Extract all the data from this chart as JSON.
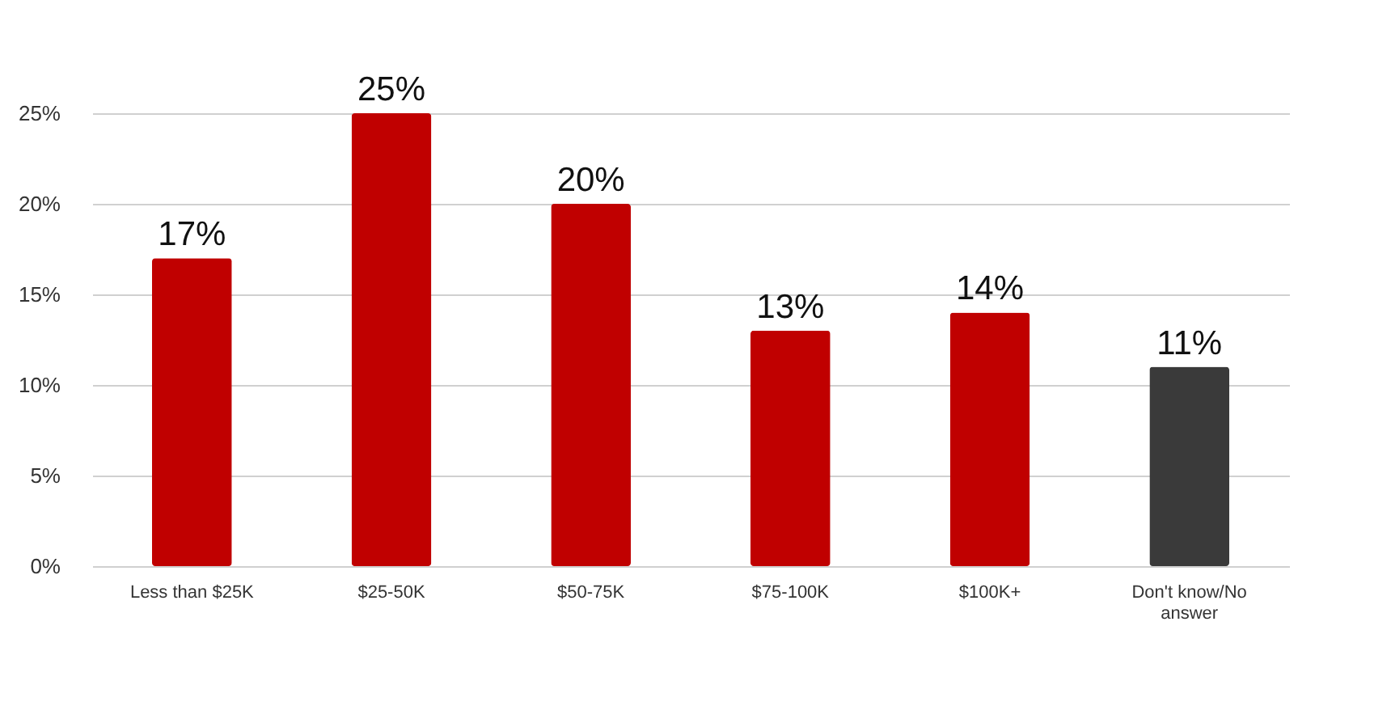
{
  "chart_data": {
    "type": "bar",
    "categories": [
      "Less than $25K",
      "$25-50K",
      "$50-75K",
      "$75-100K",
      "$100K+",
      "Don't know/No answer"
    ],
    "values": [
      17,
      25,
      20,
      13,
      14,
      11
    ],
    "colors": [
      "#c00000",
      "#c00000",
      "#c00000",
      "#c00000",
      "#c00000",
      "#3a3a3a"
    ],
    "value_labels": [
      "17%",
      "25%",
      "20%",
      "13%",
      "14%",
      "11%"
    ],
    "ylim": [
      0,
      25
    ],
    "yticks": [
      {
        "value": 0,
        "label": "0%"
      },
      {
        "value": 5,
        "label": "5%"
      },
      {
        "value": 10,
        "label": "10%"
      },
      {
        "value": 15,
        "label": "15%"
      },
      {
        "value": 20,
        "label": "20%"
      },
      {
        "value": 25,
        "label": "25%"
      }
    ],
    "grid": "y"
  }
}
